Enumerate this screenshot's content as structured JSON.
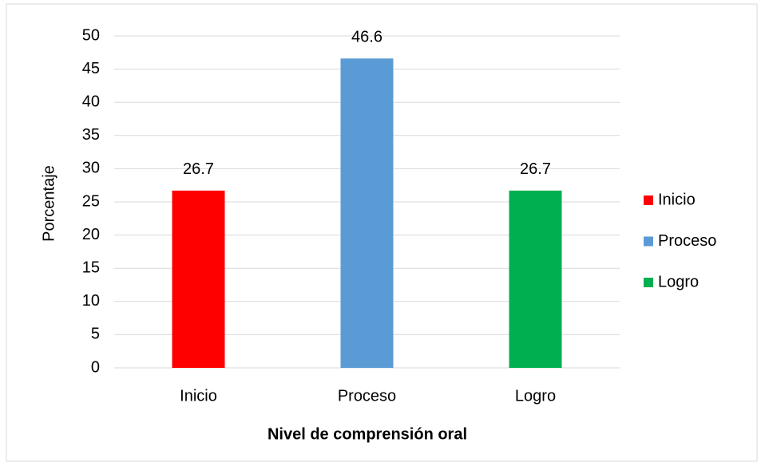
{
  "chart_data": {
    "type": "bar",
    "categories": [
      "Inicio",
      "Proceso",
      "Logro"
    ],
    "values": [
      26.7,
      46.6,
      26.7
    ],
    "colors": [
      "#ff0000",
      "#5b9bd5",
      "#00b050"
    ],
    "ylim": [
      0,
      50
    ],
    "yticks": [
      0,
      5,
      10,
      15,
      20,
      25,
      30,
      35,
      40,
      45,
      50
    ],
    "grid": true,
    "legend": "right",
    "xlabel": "Nivel de comprensión oral",
    "ylabel": "Porcentaje"
  }
}
